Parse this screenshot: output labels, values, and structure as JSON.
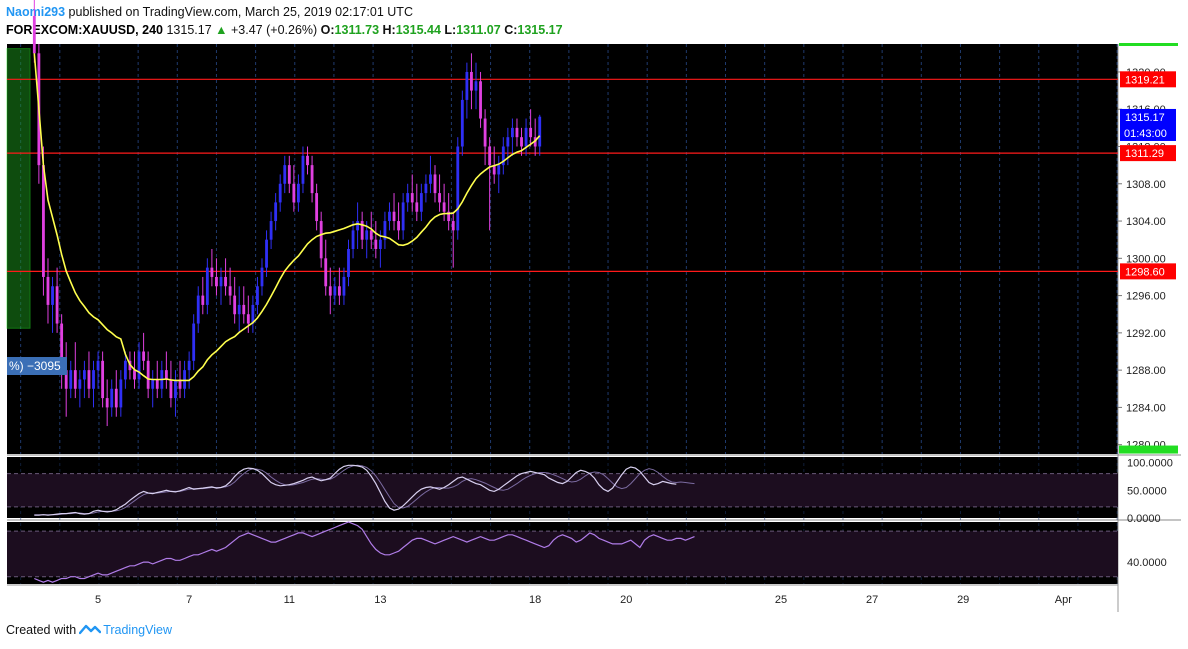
{
  "header": {
    "author": "Naomi293",
    "published_text": "published on TradingView.com, March 25, 2019 02:17:01 UTC",
    "symbol": "FOREXCOM:XAUUSD, 240",
    "last": "1315.17",
    "change": "+3.47 (+0.26%)",
    "open_label": "O:",
    "open": "1311.73",
    "high_label": "H:",
    "high": "1315.44",
    "low_label": "L:",
    "low": "1311.07",
    "close_label": "C:",
    "close": "1315.17"
  },
  "footer": {
    "created_text": "Created with",
    "brand": "TradingView"
  },
  "colors": {
    "background": "#000000",
    "bull": "#2f2ff5",
    "bear": "#e040e0",
    "ma": "#ffff4d",
    "level_line": "#ff1a1a",
    "grid": "#1f3a6e",
    "osc_fill": "#1c0d1f",
    "osc_line": "#b07ce8",
    "price_label": "#ff0000",
    "current_label": "#0000ff",
    "green_accent": "#22dd22"
  },
  "chart_data": {
    "type": "candlestick",
    "symbol": "FOREXCOM:XAUUSD",
    "timeframe": "240",
    "ylim": [
      1279,
      1323
    ],
    "y_ticks": [
      1280.0,
      1284.0,
      1288.0,
      1292.0,
      1296.0,
      1300.0,
      1304.0,
      1308.0,
      1312.0,
      1316.0,
      1320.0
    ],
    "y_tick_labels": [
      "1280.00",
      "1284.00",
      "1288.00",
      "1292.00",
      "1296.00",
      "1300.00",
      "1304.00",
      "1308.00",
      "1312.00",
      "1316.00",
      "1320.00"
    ],
    "x_tick_labels": [
      "5",
      "7",
      "11",
      "13",
      "18",
      "20",
      "25",
      "27",
      "29",
      "Apr"
    ],
    "x_tick_index": [
      14,
      34,
      56,
      76,
      110,
      130,
      164,
      184,
      204,
      226
    ],
    "index_range": [
      -6,
      238
    ],
    "horizontal_levels": [
      {
        "value": 1319.21,
        "label": "1319.21"
      },
      {
        "value": 1311.29,
        "label": "1311.29"
      },
      {
        "value": 1298.6,
        "label": "1298.60"
      }
    ],
    "current_price": {
      "value": 1315.17,
      "label": "1315.17",
      "countdown": "01:43:00"
    },
    "overlay_label": "%) −3095",
    "oscillator1": {
      "ylim": [
        0,
        110
      ],
      "tick_values": [
        100,
        50,
        0
      ],
      "tick_labels": [
        "100.0000",
        "50.0000",
        "0.0000"
      ],
      "band": [
        20,
        80
      ],
      "values": [
        5,
        5,
        6,
        5,
        6,
        7,
        8,
        8,
        9,
        10,
        8,
        7,
        8,
        12,
        14,
        12,
        11,
        12,
        15,
        20,
        25,
        32,
        38,
        44,
        48,
        45,
        44,
        46,
        48,
        50,
        48,
        47,
        49,
        52,
        55,
        52,
        53,
        54,
        55,
        56,
        54,
        55,
        58,
        65,
        75,
        83,
        88,
        90,
        89,
        86,
        80,
        72,
        64,
        60,
        58,
        59,
        60,
        62,
        65,
        68,
        72,
        74,
        70,
        67,
        69,
        72,
        80,
        88,
        93,
        95,
        95,
        94,
        92,
        86,
        75,
        62,
        46,
        30,
        18,
        14,
        16,
        22,
        30,
        38,
        46,
        52,
        55,
        56,
        54,
        52,
        55,
        60,
        66,
        72,
        74,
        70,
        66,
        62,
        60,
        55,
        50,
        48,
        52,
        58,
        64,
        70,
        76,
        80,
        82,
        84,
        82,
        80,
        78,
        72,
        68,
        64,
        62,
        66,
        74,
        82,
        86,
        84,
        80,
        72,
        60,
        52,
        48,
        54,
        66,
        78,
        88,
        92,
        90,
        84,
        74,
        64,
        60,
        62,
        66,
        64,
        62,
        61
      ],
      "signal": [
        6,
        6,
        6,
        6,
        6,
        6,
        7,
        8,
        8,
        9,
        9,
        8,
        8,
        9,
        11,
        12,
        12,
        12,
        13,
        15,
        19,
        25,
        31,
        37,
        42,
        45,
        45,
        45,
        46,
        47,
        48,
        48,
        48,
        50,
        52,
        53,
        53,
        53,
        54,
        55,
        55,
        55,
        56,
        59,
        65,
        73,
        80,
        86,
        89,
        88,
        86,
        81,
        74,
        68,
        63,
        60,
        59,
        60,
        62,
        64,
        67,
        70,
        71,
        70,
        69,
        70,
        74,
        80,
        86,
        91,
        94,
        95,
        94,
        91,
        85,
        76,
        64,
        51,
        38,
        26,
        19,
        18,
        21,
        27,
        34,
        41,
        47,
        52,
        55,
        55,
        54,
        54,
        56,
        60,
        66,
        70,
        71,
        69,
        66,
        63,
        59,
        55,
        51,
        50,
        52,
        57,
        62,
        68,
        73,
        77,
        80,
        82,
        82,
        81,
        78,
        75,
        71,
        67,
        65,
        66,
        70,
        76,
        81,
        83,
        82,
        78,
        71,
        63,
        56,
        53,
        55,
        62,
        71,
        80,
        86,
        89,
        87,
        82,
        75,
        69,
        65,
        64,
        65,
        64,
        63,
        62
      ]
    },
    "oscillator2": {
      "ylim": [
        28,
        62
      ],
      "tick_values": [
        40
      ],
      "tick_labels": [
        "40.0000"
      ],
      "band": [
        32,
        57
      ],
      "values": [
        31,
        30,
        29,
        30,
        29,
        30,
        31,
        31,
        32,
        32,
        31,
        31,
        32,
        33,
        34,
        33,
        33,
        34,
        35,
        36,
        37,
        38,
        38,
        39,
        40,
        40,
        39,
        40,
        41,
        42,
        42,
        41,
        41,
        42,
        43,
        44,
        44,
        45,
        46,
        47,
        46,
        47,
        48,
        50,
        52,
        54,
        55,
        56,
        55,
        54,
        53,
        52,
        51,
        51,
        52,
        53,
        54,
        55,
        56,
        56,
        55,
        54,
        55,
        56,
        57,
        58,
        59,
        60,
        61,
        62,
        61,
        60,
        58,
        54,
        50,
        47,
        45,
        44,
        44,
        45,
        46,
        48,
        50,
        52,
        53,
        53,
        52,
        51,
        50,
        51,
        52,
        53,
        54,
        53,
        52,
        51,
        52,
        53,
        54,
        53,
        52,
        52,
        53,
        54,
        55,
        55,
        54,
        53,
        52,
        51,
        50,
        49,
        48,
        49,
        52,
        54,
        55,
        54,
        53,
        51,
        52,
        54,
        56,
        55,
        53,
        52,
        51,
        50,
        50,
        50,
        51,
        52,
        50,
        48,
        52,
        54,
        55,
        54,
        53,
        52,
        52,
        53,
        53,
        52,
        53,
        54
      ]
    },
    "ma_period": 20,
    "candles": [
      [
        1326,
        1328,
        1321,
        1322
      ],
      [
        1322,
        1323,
        1308,
        1310
      ],
      [
        1310,
        1312,
        1296,
        1298
      ],
      [
        1298,
        1300,
        1293,
        1295
      ],
      [
        1295,
        1298,
        1292,
        1297
      ],
      [
        1297,
        1299,
        1292,
        1293
      ],
      [
        1293,
        1294,
        1286,
        1288
      ],
      [
        1288,
        1291,
        1283,
        1286
      ],
      [
        1286,
        1289,
        1285,
        1288
      ],
      [
        1288,
        1291,
        1285,
        1286
      ],
      [
        1286,
        1288,
        1284,
        1287
      ],
      [
        1287,
        1289,
        1285,
        1288
      ],
      [
        1288,
        1290,
        1285,
        1286
      ],
      [
        1286,
        1289,
        1284,
        1288
      ],
      [
        1288,
        1290,
        1286,
        1289
      ],
      [
        1289,
        1290,
        1284,
        1285
      ],
      [
        1285,
        1287,
        1282,
        1284
      ],
      [
        1284,
        1287,
        1283,
        1286
      ],
      [
        1286,
        1288,
        1283,
        1284
      ],
      [
        1284,
        1288,
        1283,
        1287
      ],
      [
        1287,
        1290,
        1286,
        1289
      ],
      [
        1289,
        1290,
        1287,
        1288
      ],
      [
        1288,
        1290,
        1286,
        1287
      ],
      [
        1287,
        1291,
        1286,
        1290
      ],
      [
        1290,
        1292,
        1288,
        1289
      ],
      [
        1289,
        1290,
        1285,
        1286
      ],
      [
        1286,
        1288,
        1284,
        1287
      ],
      [
        1287,
        1289,
        1285,
        1286
      ],
      [
        1286,
        1289,
        1285,
        1288
      ],
      [
        1288,
        1290,
        1286,
        1287
      ],
      [
        1287,
        1289,
        1284,
        1285
      ],
      [
        1285,
        1288,
        1283,
        1287
      ],
      [
        1287,
        1289,
        1285,
        1286
      ],
      [
        1286,
        1289,
        1285,
        1288
      ],
      [
        1288,
        1290,
        1286,
        1289
      ],
      [
        1289,
        1294,
        1288,
        1293
      ],
      [
        1293,
        1297,
        1292,
        1296
      ],
      [
        1296,
        1298,
        1294,
        1295
      ],
      [
        1295,
        1300,
        1294,
        1299
      ],
      [
        1299,
        1301,
        1297,
        1298
      ],
      [
        1298,
        1300,
        1296,
        1297
      ],
      [
        1297,
        1299,
        1295,
        1298
      ],
      [
        1298,
        1300,
        1296,
        1297
      ],
      [
        1297,
        1299,
        1295,
        1296
      ],
      [
        1296,
        1298,
        1293,
        1294
      ],
      [
        1294,
        1297,
        1292,
        1295
      ],
      [
        1295,
        1297,
        1293,
        1294
      ],
      [
        1294,
        1296,
        1292,
        1293
      ],
      [
        1293,
        1296,
        1292,
        1295
      ],
      [
        1295,
        1298,
        1294,
        1297
      ],
      [
        1297,
        1300,
        1296,
        1299
      ],
      [
        1299,
        1303,
        1298,
        1302
      ],
      [
        1302,
        1305,
        1301,
        1304
      ],
      [
        1304,
        1307,
        1303,
        1306
      ],
      [
        1306,
        1309,
        1305,
        1308
      ],
      [
        1308,
        1311,
        1307,
        1310
      ],
      [
        1310,
        1311,
        1307,
        1308
      ],
      [
        1308,
        1310,
        1305,
        1306
      ],
      [
        1306,
        1309,
        1305,
        1308
      ],
      [
        1308,
        1312,
        1307,
        1311
      ],
      [
        1311,
        1312,
        1309,
        1310
      ],
      [
        1310,
        1311,
        1306,
        1307
      ],
      [
        1307,
        1308,
        1303,
        1304
      ],
      [
        1304,
        1305,
        1299,
        1300
      ],
      [
        1300,
        1302,
        1296,
        1297
      ],
      [
        1297,
        1299,
        1294,
        1296
      ],
      [
        1296,
        1298,
        1295,
        1297
      ],
      [
        1297,
        1299,
        1295,
        1296
      ],
      [
        1296,
        1299,
        1295,
        1298
      ],
      [
        1298,
        1302,
        1297,
        1301
      ],
      [
        1301,
        1304,
        1300,
        1303
      ],
      [
        1303,
        1306,
        1301,
        1304
      ],
      [
        1304,
        1305,
        1301,
        1302
      ],
      [
        1302,
        1304,
        1300,
        1303
      ],
      [
        1303,
        1305,
        1301,
        1302
      ],
      [
        1302,
        1304,
        1300,
        1301
      ],
      [
        1301,
        1303,
        1299,
        1302
      ],
      [
        1302,
        1305,
        1301,
        1304
      ],
      [
        1304,
        1306,
        1303,
        1305
      ],
      [
        1305,
        1307,
        1303,
        1304
      ],
      [
        1304,
        1306,
        1302,
        1303
      ],
      [
        1303,
        1307,
        1302,
        1306
      ],
      [
        1306,
        1308,
        1305,
        1307
      ],
      [
        1307,
        1309,
        1305,
        1306
      ],
      [
        1306,
        1308,
        1304,
        1305
      ],
      [
        1305,
        1308,
        1304,
        1307
      ],
      [
        1307,
        1309,
        1306,
        1308
      ],
      [
        1308,
        1311,
        1307,
        1309
      ],
      [
        1309,
        1310,
        1306,
        1307
      ],
      [
        1307,
        1309,
        1305,
        1306
      ],
      [
        1306,
        1308,
        1304,
        1305
      ],
      [
        1305,
        1307,
        1303,
        1304
      ],
      [
        1304,
        1305,
        1299,
        1303
      ],
      [
        1303,
        1313,
        1302,
        1312
      ],
      [
        1312,
        1318,
        1311,
        1317
      ],
      [
        1317,
        1321,
        1315,
        1320
      ],
      [
        1320,
        1322,
        1316,
        1318
      ],
      [
        1318,
        1321,
        1316,
        1319
      ],
      [
        1319,
        1320,
        1314,
        1315
      ],
      [
        1315,
        1316,
        1310,
        1312
      ],
      [
        1312,
        1313,
        1303,
        1310
      ],
      [
        1310,
        1312,
        1308,
        1309
      ],
      [
        1309,
        1311,
        1307,
        1310
      ],
      [
        1310,
        1313,
        1309,
        1312
      ],
      [
        1312,
        1314,
        1310,
        1313
      ],
      [
        1313,
        1315,
        1311,
        1314
      ],
      [
        1314,
        1315,
        1312,
        1313
      ],
      [
        1313,
        1314,
        1311,
        1312
      ],
      [
        1312,
        1315,
        1311,
        1314
      ],
      [
        1314,
        1316,
        1312,
        1313
      ],
      [
        1313,
        1315,
        1311,
        1312
      ],
      [
        1312,
        1315.4,
        1311,
        1315.2
      ]
    ]
  }
}
